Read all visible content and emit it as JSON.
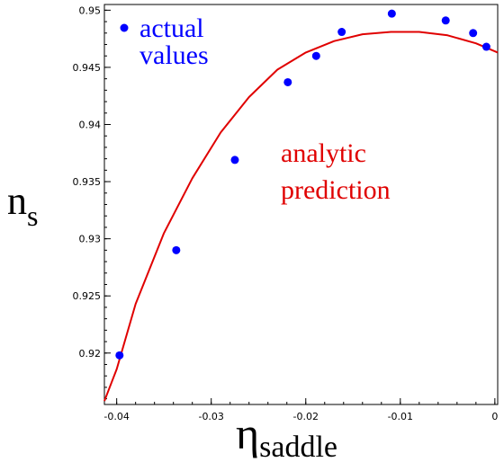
{
  "chart_data": {
    "type": "scatter",
    "xlim": [
      -0.0413,
      0.0003
    ],
    "ylim": [
      0.9155,
      0.9505
    ],
    "x_ticks": [
      -0.04,
      -0.03,
      -0.02,
      -0.01,
      0
    ],
    "x_tick_labels": [
      "-0.04",
      "-0.03",
      "-0.02",
      "-0.01",
      "0"
    ],
    "y_ticks": [
      0.92,
      0.925,
      0.93,
      0.935,
      0.94,
      0.945,
      0.95
    ],
    "y_tick_labels": [
      "0.92",
      "0.925",
      "0.93",
      "0.935",
      "0.94",
      "0.945",
      "0.95"
    ],
    "xlabel": "η",
    "xlabel_sub": "saddle",
    "ylabel": "n",
    "ylabel_sub": "s",
    "grid": false,
    "series": [
      {
        "name": "actual values",
        "kind": "points",
        "color": "#0000ff",
        "points": [
          {
            "x": -0.0397,
            "y": 0.9198
          },
          {
            "x": -0.0337,
            "y": 0.929
          },
          {
            "x": -0.0275,
            "y": 0.9369
          },
          {
            "x": -0.0219,
            "y": 0.9437
          },
          {
            "x": -0.0189,
            "y": 0.946
          },
          {
            "x": -0.0162,
            "y": 0.9481
          },
          {
            "x": -0.0109,
            "y": 0.9497
          },
          {
            "x": -0.0052,
            "y": 0.9491
          },
          {
            "x": -0.0023,
            "y": 0.948
          },
          {
            "x": -0.0009,
            "y": 0.9468
          }
        ]
      },
      {
        "name": "analytic prediction",
        "kind": "curve",
        "color": "#e00000",
        "points": [
          {
            "x": -0.0413,
            "y": 0.9158
          },
          {
            "x": -0.04,
            "y": 0.9186
          },
          {
            "x": -0.038,
            "y": 0.9243
          },
          {
            "x": -0.035,
            "y": 0.9305
          },
          {
            "x": -0.032,
            "y": 0.9353
          },
          {
            "x": -0.029,
            "y": 0.9393
          },
          {
            "x": -0.026,
            "y": 0.9424
          },
          {
            "x": -0.023,
            "y": 0.9448
          },
          {
            "x": -0.02,
            "y": 0.9463
          },
          {
            "x": -0.017,
            "y": 0.9473
          },
          {
            "x": -0.014,
            "y": 0.9479
          },
          {
            "x": -0.011,
            "y": 0.9481
          },
          {
            "x": -0.008,
            "y": 0.9481
          },
          {
            "x": -0.005,
            "y": 0.9478
          },
          {
            "x": -0.002,
            "y": 0.9471
          },
          {
            "x": 0.0003,
            "y": 0.9463
          }
        ]
      }
    ],
    "annotations": {
      "actual_line1": "actual",
      "actual_line2": "values",
      "analytic_line1": "analytic",
      "analytic_line2": "prediction"
    }
  }
}
